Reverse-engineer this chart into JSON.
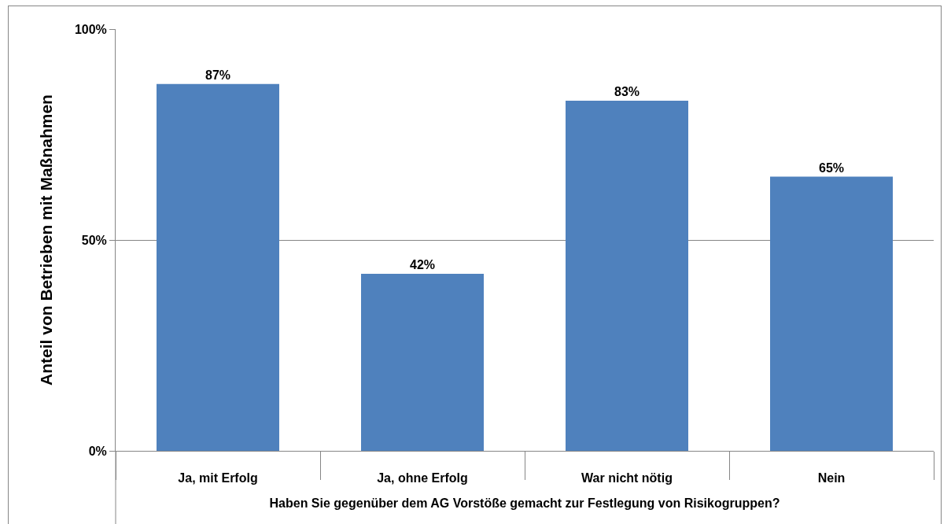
{
  "chart_data": {
    "type": "bar",
    "categories": [
      "Ja, mit Erfolg",
      "Ja, ohne Erfolg",
      "War nicht nötig",
      "Nein"
    ],
    "values": [
      87,
      42,
      83,
      65
    ],
    "value_labels": [
      "87%",
      "42%",
      "83%",
      "65%"
    ],
    "color": "#4f81bd",
    "ylim": [
      0,
      100
    ],
    "yticks": [
      {
        "value": 0,
        "label": "0%"
      },
      {
        "value": 50,
        "label": "50%"
      },
      {
        "value": 100,
        "label": "100%"
      }
    ],
    "grid": "y",
    "xlabel": "Haben Sie gegenüber dem AG Vorstöße gemacht zur Festlegung von Risikogruppen?",
    "ylabel": "Anteil von Betrieben mit Maßnahmen"
  }
}
